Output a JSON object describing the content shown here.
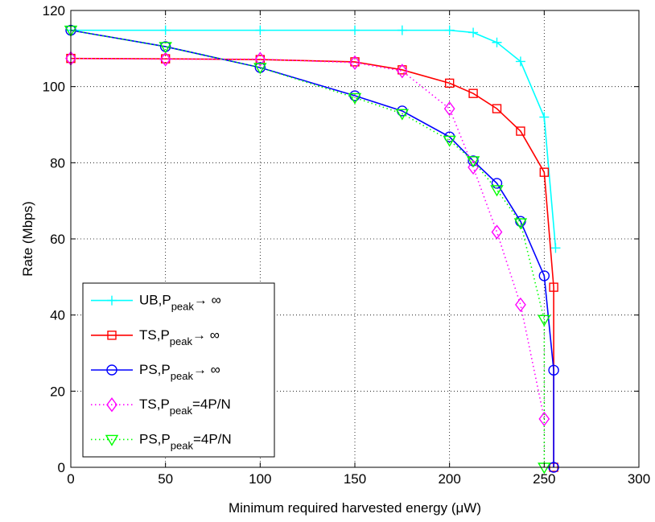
{
  "chart_data": {
    "type": "line",
    "xlabel": "Minimum required harvested energy (μW)",
    "ylabel": "Rate (Mbps)",
    "xlim": [
      0,
      300
    ],
    "ylim": [
      0,
      120
    ],
    "xticks": [
      0,
      50,
      100,
      150,
      200,
      250,
      300
    ],
    "yticks": [
      0,
      20,
      40,
      60,
      80,
      100,
      120
    ],
    "xtick_labels": [
      "0",
      "50",
      "100",
      "150",
      "200",
      "250",
      "300"
    ],
    "ytick_labels": [
      "0",
      "20",
      "40",
      "60",
      "80",
      "100",
      "120"
    ],
    "grid": true,
    "legend_position": "bottom-left",
    "series": [
      {
        "name": "UB,P_peak→ ∞",
        "label_main": "UB,P",
        "label_sub": "peak",
        "label_tail": "→ ∞",
        "color": "#00ffff",
        "marker": "plus",
        "dash": "solid",
        "x": [
          0,
          50,
          100,
          150,
          175,
          200,
          212.5,
          225,
          237.5,
          250,
          256
        ],
        "y": [
          114.8,
          114.8,
          114.8,
          114.8,
          114.8,
          114.8,
          114.2,
          111.6,
          106.6,
          92,
          57.6
        ]
      },
      {
        "name": "TS,P_peak→ ∞",
        "label_main": "TS,P",
        "label_sub": "peak",
        "label_tail": "→ ∞",
        "color": "#ff0000",
        "marker": "square",
        "dash": "solid",
        "x": [
          0,
          50,
          100,
          150,
          175,
          200,
          212.5,
          225,
          237.5,
          250,
          255,
          255
        ],
        "y": [
          107.4,
          107.3,
          107.1,
          106.5,
          104.4,
          100.9,
          98.2,
          94.2,
          88.3,
          77.5,
          47.3,
          0
        ]
      },
      {
        "name": "PS,P_peak→ ∞",
        "label_main": "PS,P",
        "label_sub": "peak",
        "label_tail": "→ ∞",
        "color": "#0000ff",
        "marker": "circle",
        "dash": "solid",
        "x": [
          0,
          50,
          100,
          150,
          175,
          200,
          212.5,
          225,
          237.5,
          250,
          255,
          255
        ],
        "y": [
          114.8,
          110.5,
          105,
          97.6,
          93.6,
          86.8,
          80.5,
          74.6,
          64.6,
          50.3,
          25.5,
          0
        ]
      },
      {
        "name": "TS,P_peak=4P/N",
        "label_main": "TS,P",
        "label_sub": "peak",
        "label_tail": "=4P/N",
        "color": "#ff00ff",
        "marker": "diamond",
        "dash": "dotted",
        "x": [
          0,
          50,
          100,
          150,
          175,
          200,
          212.5,
          225,
          237.5,
          250
        ],
        "y": [
          107.4,
          107.2,
          107.2,
          106.3,
          104.1,
          94.2,
          78.8,
          61.8,
          42.7,
          12.7
        ]
      },
      {
        "name": "PS,P_peak=4P/N",
        "label_main": "PS,P",
        "label_sub": "peak",
        "label_tail": "=4P/N",
        "color": "#00ff00",
        "marker": "triangle",
        "dash": "dotted",
        "x": [
          0,
          50,
          100,
          150,
          175,
          200,
          212.5,
          225,
          237.5,
          250,
          250
        ],
        "y": [
          114.8,
          110.5,
          105,
          97.1,
          92.9,
          85.9,
          80.5,
          72.9,
          64.2,
          38.8,
          0
        ]
      }
    ]
  }
}
